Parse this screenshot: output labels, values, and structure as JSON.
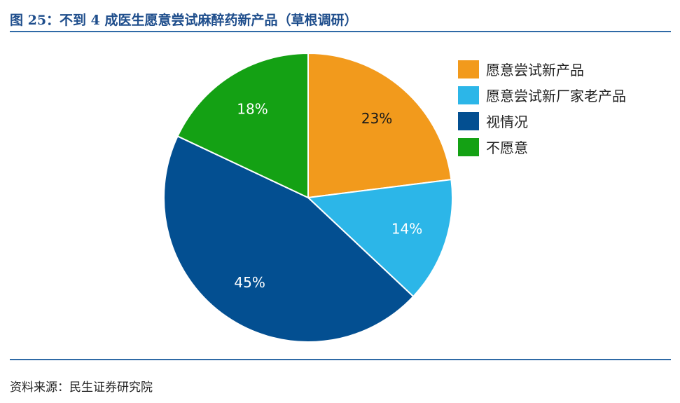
{
  "figure": {
    "title": "图 25：不到 4 成医生愿意尝试麻醉药新产品（草根调研）",
    "source": "资料来源：民生证券研究院"
  },
  "chart_data": {
    "type": "pie",
    "title": "",
    "slices": [
      {
        "name": "愿意尝试新产品",
        "value": 23,
        "label": "23%",
        "color": "#f29a1c",
        "label_color": "#1a1a1a"
      },
      {
        "name": "愿意尝试新厂家老产品",
        "value": 14,
        "label": "14%",
        "color": "#2cb6e8",
        "label_color": "#ffffff"
      },
      {
        "name": "视情况",
        "value": 45,
        "label": "45%",
        "color": "#034f91",
        "label_color": "#ffffff"
      },
      {
        "name": "不愿意",
        "value": 18,
        "label": "18%",
        "color": "#14a114",
        "label_color": "#ffffff"
      }
    ],
    "start_angle_deg": 0,
    "direction": "clockwise",
    "legend_position": "right"
  }
}
